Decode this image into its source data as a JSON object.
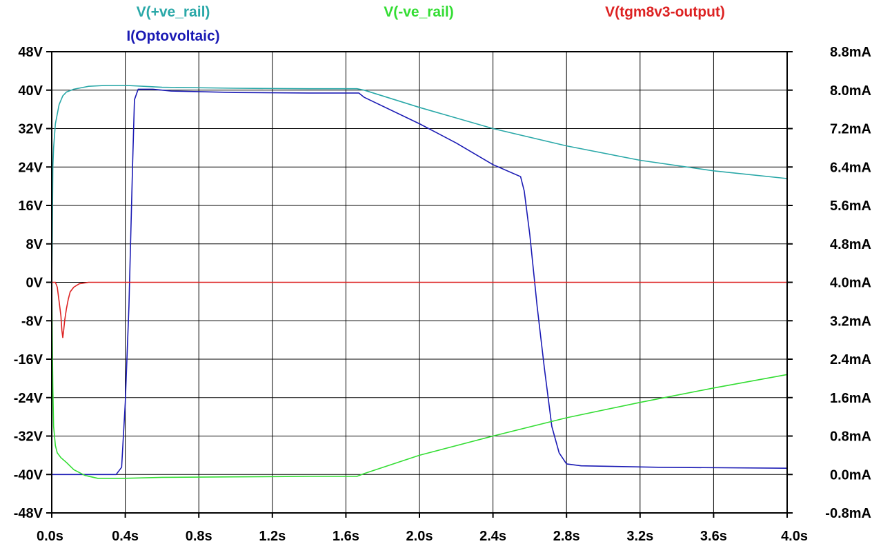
{
  "chart_data": {
    "type": "line",
    "x_axis": {
      "unit": "s",
      "range": [
        0.0,
        4.0
      ],
      "ticks": [
        0.0,
        0.4,
        0.8,
        1.2,
        1.6,
        2.0,
        2.4,
        2.8,
        3.2,
        3.6,
        4.0
      ],
      "tick_labels": [
        "0.0s",
        "0.4s",
        "0.8s",
        "1.2s",
        "1.6s",
        "2.0s",
        "2.4s",
        "2.8s",
        "3.2s",
        "3.6s",
        "4.0s"
      ]
    },
    "y_left": {
      "unit": "V",
      "range": [
        -48,
        48
      ],
      "ticks": [
        48,
        40,
        32,
        24,
        16,
        8,
        0,
        -8,
        -16,
        -24,
        -32,
        -40,
        -48
      ],
      "tick_labels": [
        "48V",
        "40V",
        "32V",
        "24V",
        "16V",
        "8V",
        "0V",
        "-8V",
        "-16V",
        "-24V",
        "-32V",
        "-40V",
        "-48V"
      ]
    },
    "y_right": {
      "unit": "mA",
      "range": [
        -0.8,
        8.8
      ],
      "ticks": [
        8.8,
        8.0,
        7.2,
        6.4,
        5.6,
        4.8,
        4.0,
        3.2,
        2.4,
        1.6,
        0.8,
        0.0,
        -0.8
      ],
      "tick_labels": [
        "8.8mA",
        "8.0mA",
        "7.2mA",
        "6.4mA",
        "5.6mA",
        "4.8mA",
        "4.0mA",
        "3.2mA",
        "2.4mA",
        "1.6mA",
        "0.8mA",
        "0.0mA",
        "-0.8mA"
      ]
    },
    "grid": true,
    "legend": [
      {
        "label": "V(+ve_rail)",
        "color": "#2aa8a8",
        "row": 1,
        "position": "top-left"
      },
      {
        "label": "I(Optovoltaic)",
        "color": "#1a1ab4",
        "row": 2,
        "position": "top-left"
      },
      {
        "label": "V(-ve_rail)",
        "color": "#33dd33",
        "row": 1,
        "position": "top-center"
      },
      {
        "label": "V(tgm8v3-output)",
        "color": "#dd2222",
        "row": 1,
        "position": "top-right"
      }
    ],
    "series": [
      {
        "name": "V(+ve_rail)",
        "axis": "left",
        "color": "#2aa8a8",
        "points": [
          [
            0.0,
            0
          ],
          [
            0.003,
            10
          ],
          [
            0.006,
            24
          ],
          [
            0.01,
            28
          ],
          [
            0.02,
            33
          ],
          [
            0.04,
            37
          ],
          [
            0.06,
            38.8
          ],
          [
            0.08,
            39.6
          ],
          [
            0.12,
            40.2
          ],
          [
            0.2,
            40.8
          ],
          [
            0.3,
            41.0
          ],
          [
            0.4,
            41.0
          ],
          [
            0.6,
            40.6
          ],
          [
            1.0,
            40.4
          ],
          [
            1.4,
            40.3
          ],
          [
            1.66,
            40.3
          ],
          [
            1.7,
            40.0
          ],
          [
            2.0,
            36.4
          ],
          [
            2.4,
            32.0
          ],
          [
            2.8,
            28.4
          ],
          [
            3.2,
            25.4
          ],
          [
            3.6,
            23.2
          ],
          [
            4.0,
            21.6
          ]
        ]
      },
      {
        "name": "I(Optovoltaic)",
        "axis": "right",
        "color": "#1a1ab4",
        "points": [
          [
            0.0,
            0.0
          ],
          [
            0.35,
            0.0
          ],
          [
            0.38,
            0.15
          ],
          [
            0.4,
            1.5
          ],
          [
            0.42,
            3.5
          ],
          [
            0.44,
            6.5
          ],
          [
            0.45,
            7.8
          ],
          [
            0.47,
            8.02
          ],
          [
            0.55,
            8.02
          ],
          [
            0.65,
            7.98
          ],
          [
            1.0,
            7.95
          ],
          [
            1.4,
            7.94
          ],
          [
            1.67,
            7.94
          ],
          [
            1.7,
            7.85
          ],
          [
            2.0,
            7.3
          ],
          [
            2.2,
            6.9
          ],
          [
            2.4,
            6.45
          ],
          [
            2.55,
            6.2
          ],
          [
            2.57,
            5.9
          ],
          [
            2.6,
            5.0
          ],
          [
            2.64,
            3.5
          ],
          [
            2.68,
            2.2
          ],
          [
            2.72,
            1.0
          ],
          [
            2.76,
            0.45
          ],
          [
            2.8,
            0.22
          ],
          [
            2.88,
            0.18
          ],
          [
            3.3,
            0.15
          ],
          [
            4.0,
            0.13
          ]
        ]
      },
      {
        "name": "V(-ve_rail)",
        "axis": "left",
        "color": "#33dd33",
        "points": [
          [
            0.0,
            0
          ],
          [
            0.003,
            -12
          ],
          [
            0.006,
            -22
          ],
          [
            0.01,
            -30
          ],
          [
            0.02,
            -34
          ],
          [
            0.03,
            -35.5
          ],
          [
            0.05,
            -36.5
          ],
          [
            0.08,
            -37.5
          ],
          [
            0.12,
            -39
          ],
          [
            0.18,
            -40.2
          ],
          [
            0.25,
            -40.8
          ],
          [
            0.4,
            -40.8
          ],
          [
            0.6,
            -40.6
          ],
          [
            1.0,
            -40.5
          ],
          [
            1.4,
            -40.4
          ],
          [
            1.66,
            -40.4
          ],
          [
            1.7,
            -39.8
          ],
          [
            2.0,
            -36.0
          ],
          [
            2.4,
            -32.0
          ],
          [
            2.8,
            -28.2
          ],
          [
            3.2,
            -25.0
          ],
          [
            3.6,
            -22.0
          ],
          [
            4.0,
            -19.2
          ]
        ]
      },
      {
        "name": "V(tgm8v3-output)",
        "axis": "left",
        "color": "#dd2222",
        "points": [
          [
            0.0,
            0
          ],
          [
            0.02,
            0
          ],
          [
            0.03,
            -1
          ],
          [
            0.04,
            -4
          ],
          [
            0.05,
            -7
          ],
          [
            0.055,
            -10
          ],
          [
            0.06,
            -11.5
          ],
          [
            0.065,
            -10
          ],
          [
            0.07,
            -8
          ],
          [
            0.08,
            -5.5
          ],
          [
            0.09,
            -3.5
          ],
          [
            0.1,
            -2
          ],
          [
            0.12,
            -1
          ],
          [
            0.15,
            -0.3
          ],
          [
            0.2,
            0
          ],
          [
            4.0,
            0
          ]
        ]
      }
    ]
  }
}
